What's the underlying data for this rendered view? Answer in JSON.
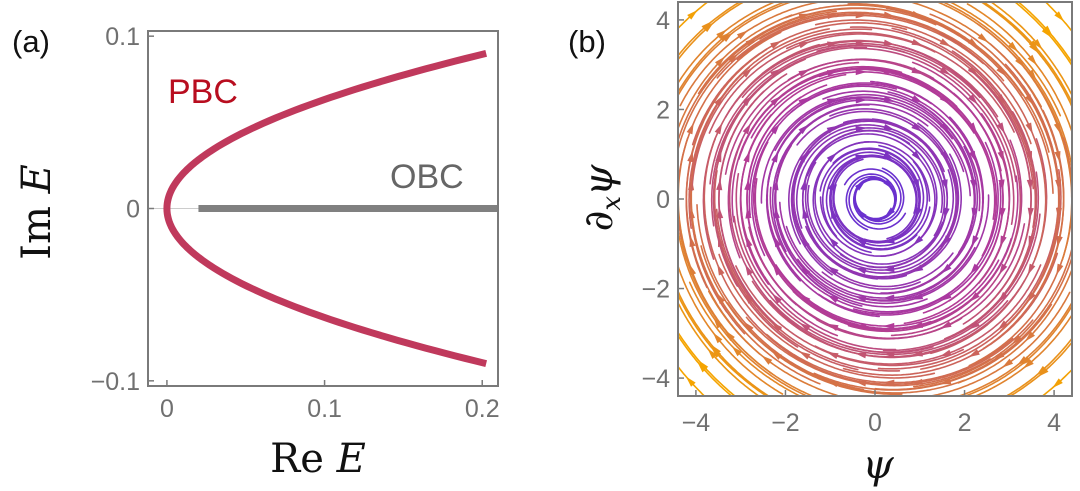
{
  "chart_data": [
    {
      "type": "line",
      "panel_label": "(a)",
      "xlabel": "Re E",
      "ylabel": "Im E",
      "xlim": [
        -0.012,
        0.21
      ],
      "ylim": [
        -0.103,
        0.103
      ],
      "xticks": [
        {
          "value": 0,
          "label": "0"
        },
        {
          "value": 0.1,
          "label": "0.1"
        },
        {
          "value": 0.2,
          "label": "0.2"
        }
      ],
      "yticks": [
        {
          "value": 0.1,
          "label": "0.1"
        },
        {
          "value": 0,
          "label": "0"
        },
        {
          "value": -0.1,
          "label": "−0.1"
        }
      ],
      "series": [
        {
          "name": "PBC",
          "color": "#C0395C",
          "label_color": "#B80D1F",
          "relation": "Re E = 25 (Im E)^2",
          "x": [
            0.2025,
            0.16,
            0.1225,
            0.09,
            0.0625,
            0.04,
            0.0225,
            0.01,
            0.0025,
            0,
            0.0025,
            0.01,
            0.0225,
            0.04,
            0.0625,
            0.09,
            0.1225,
            0.16,
            0.2025
          ],
          "y": [
            -0.09,
            -0.08,
            -0.07,
            -0.06,
            -0.05,
            -0.04,
            -0.03,
            -0.02,
            -0.01,
            0,
            0.01,
            0.02,
            0.03,
            0.04,
            0.05,
            0.06,
            0.07,
            0.08,
            0.09
          ]
        },
        {
          "name": "OBC",
          "color": "#808080",
          "label_color": "#666666",
          "x": [
            0.02,
            0.21
          ],
          "y": [
            0,
            0
          ]
        }
      ]
    },
    {
      "type": "streamplot",
      "panel_label": "(b)",
      "xlabel": "ψ",
      "ylabel": "∂xψ",
      "xlim": [
        -4.4,
        4.4
      ],
      "ylim": [
        -4.4,
        4.4
      ],
      "xticks": [
        {
          "value": -4,
          "label": "−4"
        },
        {
          "value": -2,
          "label": "−2"
        },
        {
          "value": 0,
          "label": "0"
        },
        {
          "value": 2,
          "label": "2"
        },
        {
          "value": 4,
          "label": "4"
        }
      ],
      "yticks": [
        {
          "value": 4,
          "label": "4"
        },
        {
          "value": 2,
          "label": "2"
        },
        {
          "value": 0,
          "label": "0"
        },
        {
          "value": -2,
          "label": "−2"
        },
        {
          "value": -4,
          "label": "−4"
        }
      ],
      "vector_field": {
        "u": "dpsi/dx = y",
        "v": "d(dpsi)/dx = -x - 0.1*y",
        "flow": "clockwise spiral inward toward (0, 0)"
      },
      "color_scale": {
        "low_speed": "#5D2FD9",
        "mid": "#B0399A",
        "high_speed": "#F5A400"
      }
    }
  ]
}
